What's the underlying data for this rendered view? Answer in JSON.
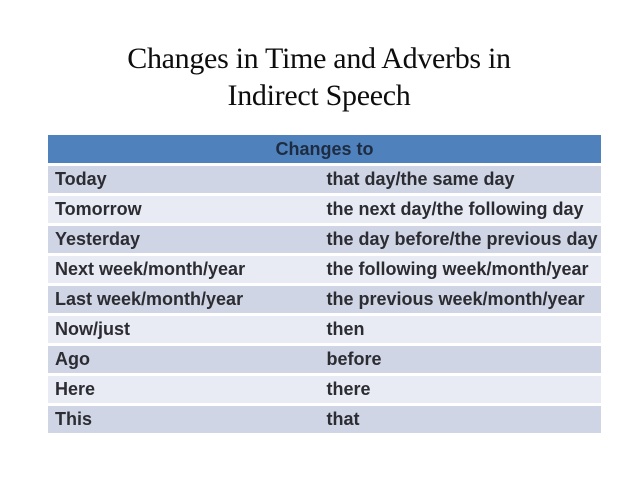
{
  "slide": {
    "title_line1": "Changes in Time and Adverbs in",
    "title_line2": "Indirect Speech"
  },
  "table": {
    "header": "Changes to",
    "rows": [
      {
        "from": "Today",
        "to": "that day/the same day"
      },
      {
        "from": "Tomorrow",
        "to": "the next day/the following day"
      },
      {
        "from": "Yesterday",
        "to": "the day before/the previous day"
      },
      {
        "from": "Next week/month/year",
        "to": "the following week/month/year"
      },
      {
        "from": "Last week/month/year",
        "to": "the previous week/month/year"
      },
      {
        "from": "Now/just",
        "to": "then"
      },
      {
        "from": "Ago",
        "to": "before"
      },
      {
        "from": "Here",
        "to": "there"
      },
      {
        "from": "This",
        "to": "that"
      }
    ],
    "colors": {
      "header_bg": "#4f81bd",
      "header_text": "#1e2c42",
      "row_dark": "#cfd5e4",
      "row_light": "#e9ebf4",
      "body_text": "#2c2c33",
      "separator": "#ffffff"
    }
  }
}
